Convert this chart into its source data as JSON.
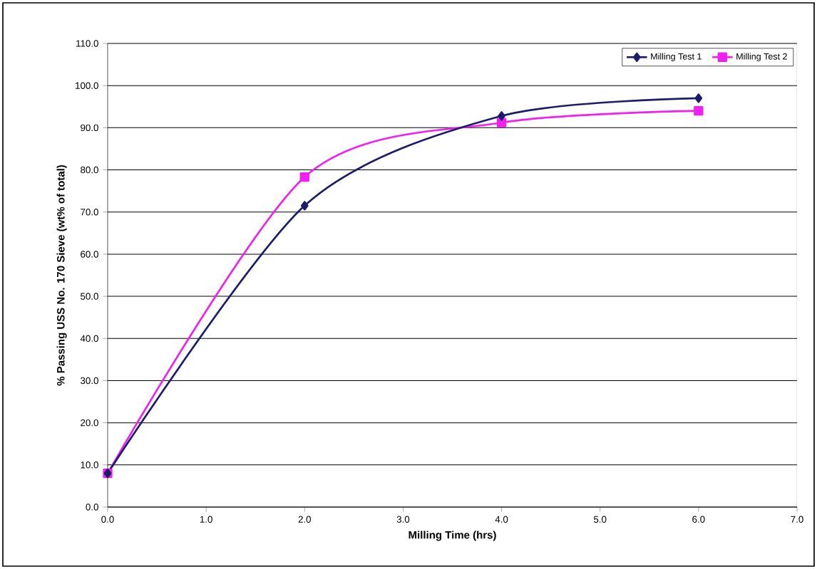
{
  "chart_data": {
    "type": "line",
    "xlabel": "Milling Time (hrs)",
    "ylabel": "% Passing USS No. 170 Sieve (wt% of total)",
    "series": [
      {
        "name": "Milling Test 1",
        "color": "#1c1c6b",
        "marker": "diamond",
        "x": [
          0,
          2,
          4,
          6
        ],
        "values": [
          8,
          71.5,
          92.8,
          97
        ]
      },
      {
        "name": "Milling Test 2",
        "color": "#f020f0",
        "marker": "square",
        "x": [
          0,
          2,
          4,
          6
        ],
        "values": [
          8,
          78.3,
          91.2,
          94
        ]
      }
    ],
    "xlim": [
      0,
      7
    ],
    "ylim": [
      0,
      110
    ],
    "xticks": [
      {
        "value": 0,
        "label": "0.0"
      },
      {
        "value": 1,
        "label": "1.0"
      },
      {
        "value": 2,
        "label": "2.0"
      },
      {
        "value": 3,
        "label": "3.0"
      },
      {
        "value": 4,
        "label": "4.0"
      },
      {
        "value": 5,
        "label": "5.0"
      },
      {
        "value": 6,
        "label": "6.0"
      },
      {
        "value": 7,
        "label": "7.0"
      }
    ],
    "yticks": [
      {
        "value": 0,
        "label": "0.0"
      },
      {
        "value": 10,
        "label": "10.0"
      },
      {
        "value": 20,
        "label": "20.0"
      },
      {
        "value": 30,
        "label": "30.0"
      },
      {
        "value": 40,
        "label": "40.0"
      },
      {
        "value": 50,
        "label": "50.0"
      },
      {
        "value": 60,
        "label": "60.0"
      },
      {
        "value": 70,
        "label": "70.0"
      },
      {
        "value": 80,
        "label": "80.0"
      },
      {
        "value": 90,
        "label": "90.0"
      },
      {
        "value": 100,
        "label": "100.0"
      },
      {
        "value": 110,
        "label": "110.0"
      }
    ],
    "grid": "y",
    "legend": "top right",
    "line_style": "solid"
  }
}
